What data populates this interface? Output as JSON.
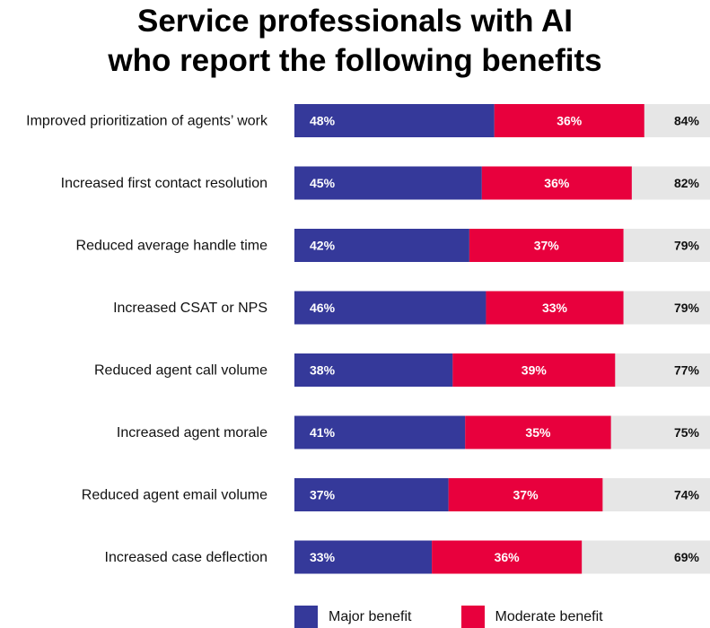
{
  "title_lines": [
    "Service professionals with AI",
    "who report the following benefits"
  ],
  "colors": {
    "major": "#35399a",
    "moderate": "#e8003d",
    "track": "#e6e6e6"
  },
  "legend": {
    "major": "Major benefit",
    "moderate": "Moderate benefit"
  },
  "chart_data": {
    "type": "bar",
    "orientation": "horizontal",
    "stacked": true,
    "title": "Service professionals with AI who report the following benefits",
    "categories": [
      "Improved prioritization of agents’ work",
      "Increased first contact resolution",
      "Reduced average handle time",
      "Increased CSAT or NPS",
      "Reduced agent call volume",
      "Increased agent morale",
      "Reduced agent email volume",
      "Increased case deflection"
    ],
    "series": [
      {
        "name": "Major benefit",
        "values": [
          48,
          45,
          42,
          46,
          38,
          41,
          37,
          33
        ]
      },
      {
        "name": "Moderate benefit",
        "values": [
          36,
          36,
          37,
          33,
          39,
          35,
          37,
          36
        ]
      }
    ],
    "totals": [
      84,
      82,
      79,
      79,
      77,
      75,
      74,
      69
    ],
    "xlim": [
      0,
      100
    ],
    "unit": "%",
    "legend_position": "bottom"
  }
}
